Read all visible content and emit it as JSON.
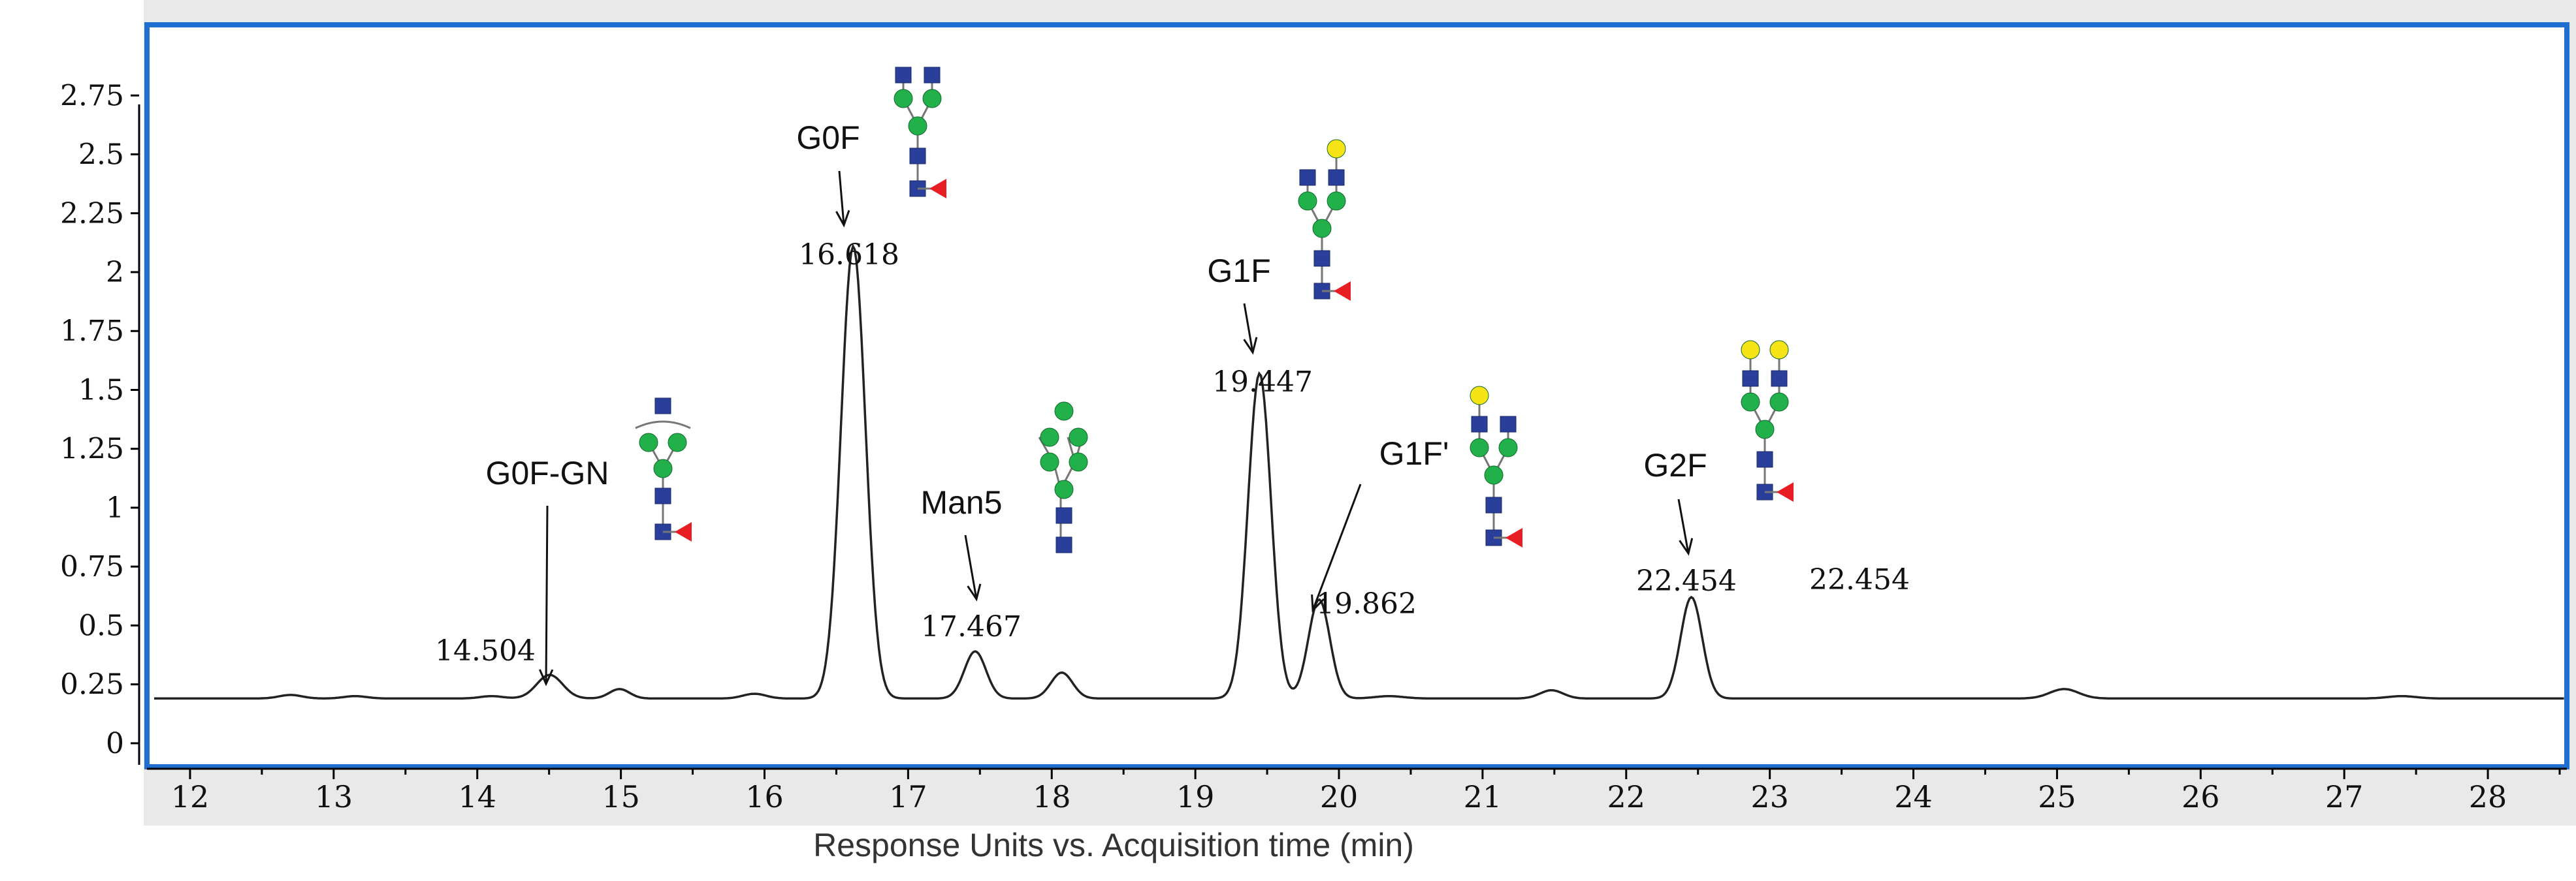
{
  "chart_data": {
    "type": "line",
    "title": "",
    "xlabel": "Response Units vs. Acquisition time (min)",
    "ylabel": "",
    "xlim": [
      11.7,
      28.55
    ],
    "ylim": [
      -0.1,
      3.05
    ],
    "xticks": [
      12,
      13,
      14,
      15,
      16,
      17,
      18,
      19,
      20,
      21,
      22,
      23,
      24,
      25,
      26,
      27,
      28
    ],
    "xtick_labels": [
      "12",
      "13",
      "14",
      "15",
      "16",
      "17",
      "18",
      "19",
      "20",
      "21",
      "22",
      "23",
      "24",
      "25",
      "26",
      "27",
      "28"
    ],
    "yticks": [
      0,
      0.25,
      0.5,
      0.75,
      1,
      1.25,
      1.5,
      1.75,
      2,
      2.25,
      2.5,
      2.75
    ],
    "ytick_labels": [
      "0",
      "0.25",
      "0.5",
      "0.75",
      "1",
      "1.25",
      "1.5",
      "1.75",
      "2",
      "2.25",
      "2.5",
      "2.75"
    ],
    "baseline": 0.19,
    "peaks": [
      {
        "rt": 12.7,
        "height": 0.015,
        "width": 0.08
      },
      {
        "rt": 13.15,
        "height": 0.01,
        "width": 0.08
      },
      {
        "rt": 14.1,
        "height": 0.01,
        "width": 0.08
      },
      {
        "rt": 14.504,
        "height": 0.1,
        "width": 0.09
      },
      {
        "rt": 14.99,
        "height": 0.04,
        "width": 0.07
      },
      {
        "rt": 15.93,
        "height": 0.02,
        "width": 0.08
      },
      {
        "rt": 16.618,
        "height": 1.92,
        "width": 0.085
      },
      {
        "rt": 17.467,
        "height": 0.2,
        "width": 0.075
      },
      {
        "rt": 18.07,
        "height": 0.11,
        "width": 0.075
      },
      {
        "rt": 19.447,
        "height": 1.38,
        "width": 0.08
      },
      {
        "rt": 19.862,
        "height": 0.42,
        "width": 0.075
      },
      {
        "rt": 20.35,
        "height": 0.01,
        "width": 0.1
      },
      {
        "rt": 21.48,
        "height": 0.035,
        "width": 0.08
      },
      {
        "rt": 22.454,
        "height": 0.43,
        "width": 0.075
      },
      {
        "rt": 25.05,
        "height": 0.04,
        "width": 0.1
      },
      {
        "rt": 27.4,
        "height": 0.01,
        "width": 0.1
      }
    ],
    "peak_labels": [
      {
        "name": "G0F-GN",
        "rt": 14.504,
        "rt_label": "14.504"
      },
      {
        "name": "G0F",
        "rt": 16.618,
        "rt_label": "16.618"
      },
      {
        "name": "Man5",
        "rt": 17.467,
        "rt_label": "17.467"
      },
      {
        "name": "G1F",
        "rt": 19.447,
        "rt_label": "19.447"
      },
      {
        "name": "G1F'",
        "rt": 19.862,
        "rt_label": "19.862"
      },
      {
        "name": "G2F",
        "rt": 22.454,
        "rt_label": "22.454"
      }
    ],
    "extra_annotation": "22.454",
    "colors": {
      "trace": "#222222",
      "frame": "#1f6fd1",
      "gray_panel": "#e9e9e9",
      "glcnac": "#2a3f9a",
      "mannose": "#22b04b",
      "galactose": "#f7e417",
      "fucose": "#e81e25"
    }
  }
}
